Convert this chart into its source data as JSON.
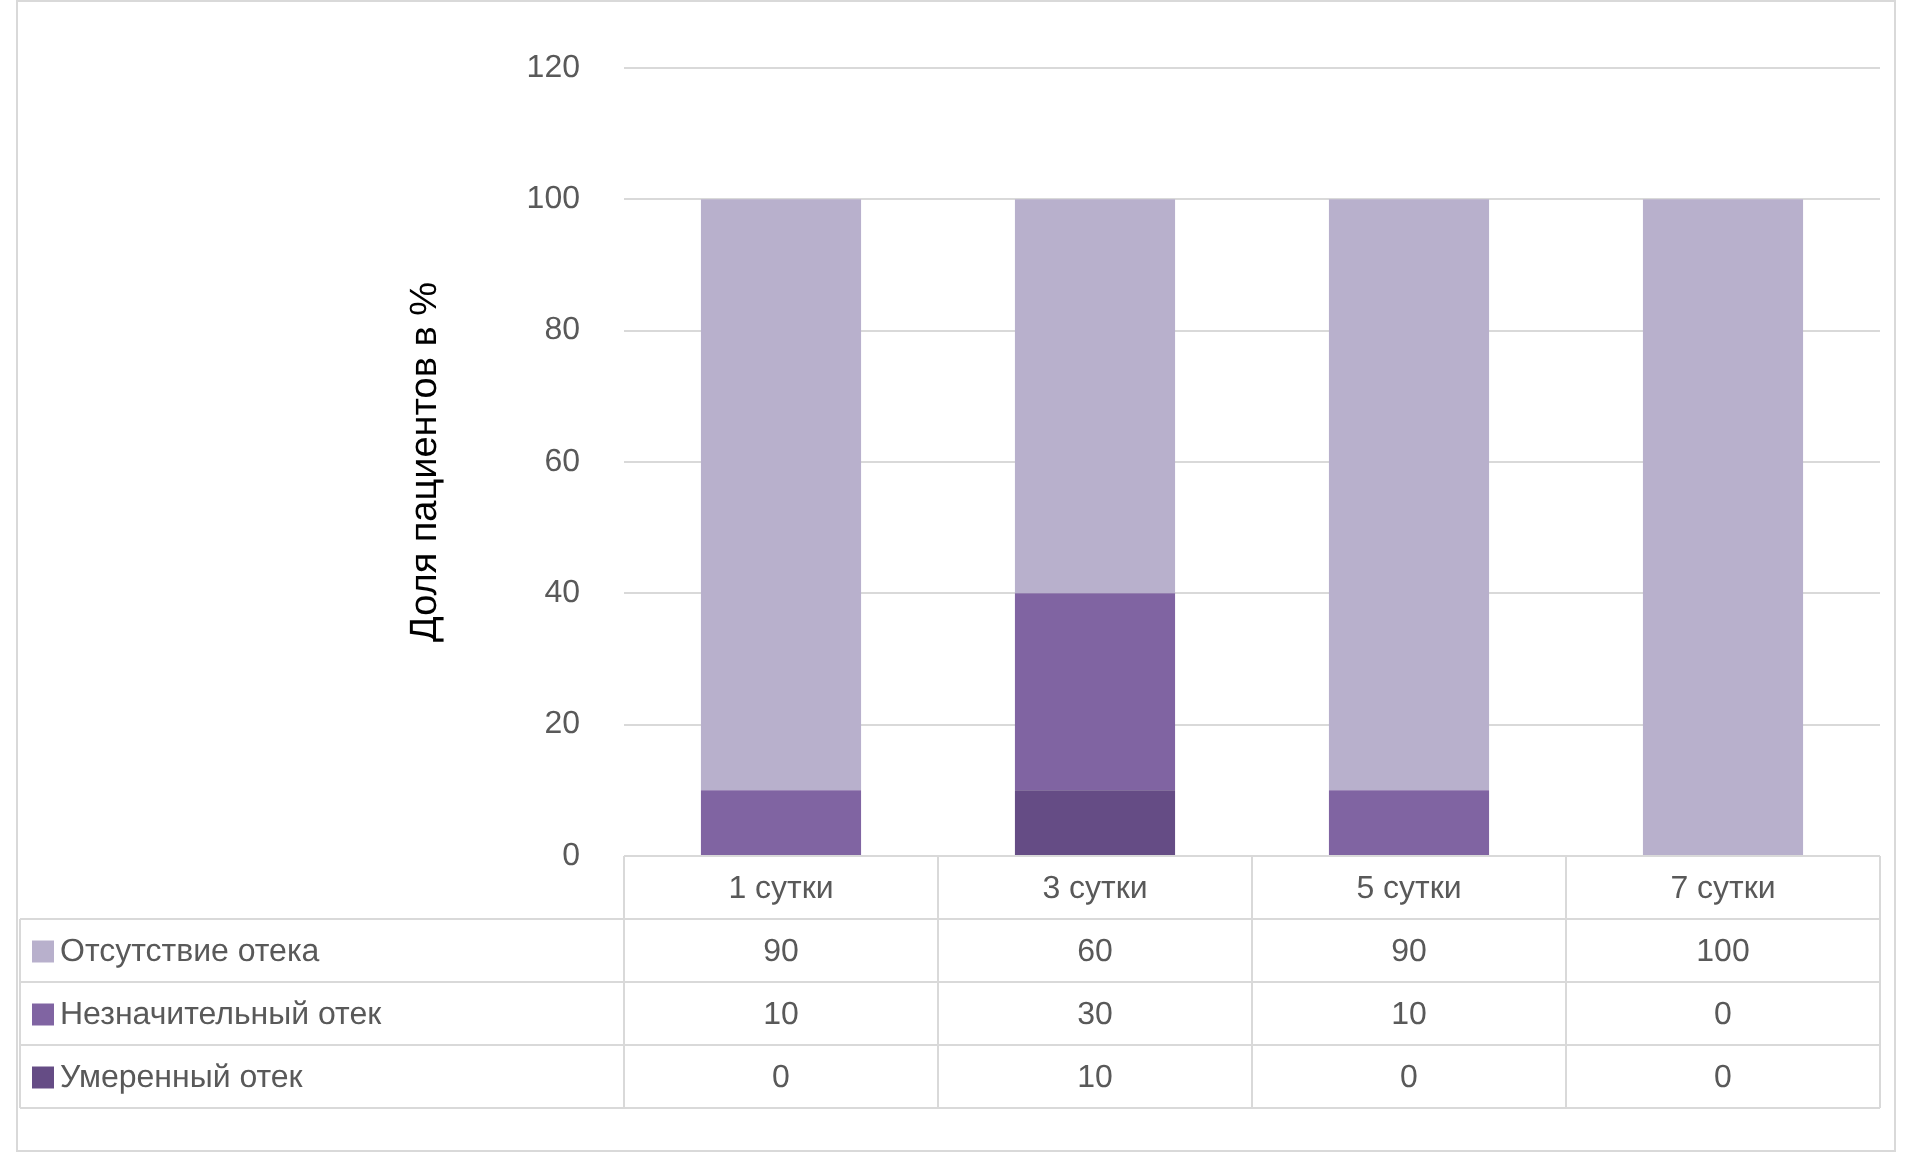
{
  "chart_data": {
    "type": "bar",
    "stacked": true,
    "ylabel": "Доля пациентов в %",
    "categories": [
      "1 сутки",
      "3 сутки",
      "5 сутки",
      "7 сутки"
    ],
    "series": [
      {
        "name": "Умеренный отек",
        "color": "#654c85",
        "values": [
          0,
          10,
          0,
          0
        ]
      },
      {
        "name": "Незначительный отек",
        "color": "#8064a2",
        "values": [
          10,
          30,
          10,
          0
        ]
      },
      {
        "name": "Отсутствие отека",
        "color": "#b8b0cc",
        "values": [
          90,
          60,
          90,
          100
        ]
      }
    ],
    "ylim": [
      0,
      120
    ],
    "yticks": [
      0,
      20,
      40,
      60,
      80,
      100,
      120
    ],
    "grid": "y",
    "legend": "bottom",
    "data_labels": true
  }
}
